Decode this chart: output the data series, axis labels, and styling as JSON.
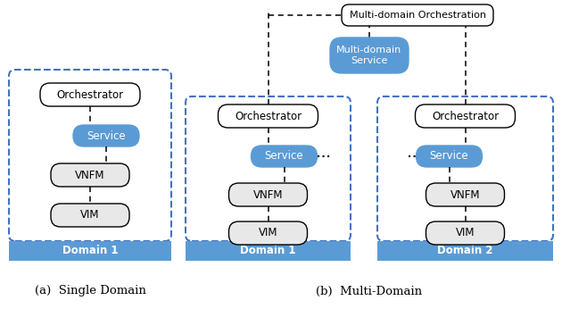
{
  "figsize": [
    6.3,
    3.46
  ],
  "dpi": 100,
  "bg_color": "#ffffff",
  "blue_fill": "#5B9BD5",
  "white_fill": "#ffffff",
  "light_gray": "#e8e8e8",
  "domain_fill": "#5B9BD5",
  "dashed_border_color": "#4472C4",
  "domain_text_color": "#ffffff",
  "node_text_color": "#000000",
  "service_text_color": "#ffffff",
  "caption_a": "(a)  Single Domain",
  "caption_b": "(b)  Multi-Domain",
  "domain1_label_a": "Domain 1",
  "domain1_label_b": "Domain 1",
  "domain2_label_b": "Domain 2",
  "orchestration_label": "Multi-domain Orchestration",
  "multi_service_label": "Multi-domain\nService",
  "orch_label": "Orchestrator",
  "service_label": "Service",
  "vnfm_label": "VNFM",
  "vim_label": "VIM"
}
